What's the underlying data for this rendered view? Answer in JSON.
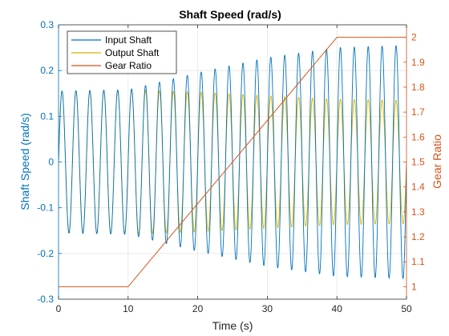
{
  "chart_data": {
    "type": "line",
    "title": "Shaft Speed (rad/s)",
    "xlabel": "Time (s)",
    "ylabel_left": "Shaft Speed (rad/s)",
    "ylabel_right": "Gear Ratio",
    "xlim": [
      0,
      50
    ],
    "ylim_left": [
      -0.3,
      0.3
    ],
    "ylim_right": [
      0.95,
      2.05
    ],
    "x_ticks": [
      "0",
      "10",
      "20",
      "30",
      "40",
      "50"
    ],
    "y_left_ticks": [
      "-0.3",
      "-0.2",
      "-0.1",
      "0",
      "0.1",
      "0.2",
      "0.3"
    ],
    "y_right_ticks": [
      "1",
      "1.1",
      "1.2",
      "1.3",
      "1.4",
      "1.5",
      "1.6",
      "1.7",
      "1.8",
      "1.9",
      "2"
    ],
    "grid": true,
    "legend_position": "top-left",
    "colors": {
      "input_shaft": "#0072bd",
      "output_shaft": "#d4b300",
      "gear_ratio": "#d95319",
      "left_axis": "#0072bd",
      "right_axis": "#d95319",
      "grid": "#e6e6e6",
      "frame": "#262626"
    },
    "series": [
      {
        "name": "Input Shaft",
        "axis": "left",
        "kind": "sinusoid",
        "frequency_hz": 0.5,
        "amplitude_points": {
          "x": [
            0,
            10,
            20,
            30,
            40,
            50
          ],
          "y": [
            0.155,
            0.158,
            0.195,
            0.228,
            0.25,
            0.255
          ]
        }
      },
      {
        "name": "Output Shaft",
        "axis": "left",
        "kind": "sinusoid",
        "frequency_hz": 0.5,
        "amplitude_points": {
          "x": [
            0,
            10,
            20,
            30,
            40,
            50
          ],
          "y": [
            0.155,
            0.158,
            0.153,
            0.145,
            0.137,
            0.135
          ]
        }
      },
      {
        "name": "Gear Ratio",
        "axis": "right",
        "x": [
          0,
          10,
          40,
          50
        ],
        "y": [
          1,
          1,
          2,
          2
        ]
      }
    ]
  }
}
